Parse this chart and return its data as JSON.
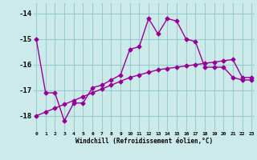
{
  "xlabel": "Windchill (Refroidissement éolien,°C)",
  "background_color": "#cceaea",
  "grid_color": "#99cccc",
  "line_color": "#990099",
  "hours": [
    0,
    1,
    2,
    3,
    4,
    5,
    6,
    7,
    8,
    9,
    10,
    11,
    12,
    13,
    14,
    15,
    16,
    17,
    18,
    19,
    20,
    21,
    22,
    23
  ],
  "windchill": [
    -15.0,
    -17.1,
    -17.1,
    -18.2,
    -17.5,
    -17.5,
    -16.9,
    -16.8,
    -16.6,
    -16.4,
    -15.4,
    -15.3,
    -14.2,
    -14.8,
    -14.2,
    -14.3,
    -15.0,
    -15.1,
    -16.1,
    -16.1,
    -16.1,
    -16.5,
    -16.6,
    -16.6
  ],
  "trend": [
    -18.0,
    -17.85,
    -17.7,
    -17.55,
    -17.4,
    -17.25,
    -17.1,
    -16.95,
    -16.8,
    -16.65,
    -16.5,
    -16.4,
    -16.3,
    -16.2,
    -16.15,
    -16.1,
    -16.05,
    -16.0,
    -15.95,
    -15.9,
    -15.85,
    -15.8,
    -16.5,
    -16.5
  ],
  "ylim": [
    -18.6,
    -13.6
  ],
  "yticks": [
    -18,
    -17,
    -16,
    -15,
    -14
  ],
  "xlim": [
    -0.3,
    23.3
  ],
  "markersize": 2.5,
  "linewidth": 1.0
}
